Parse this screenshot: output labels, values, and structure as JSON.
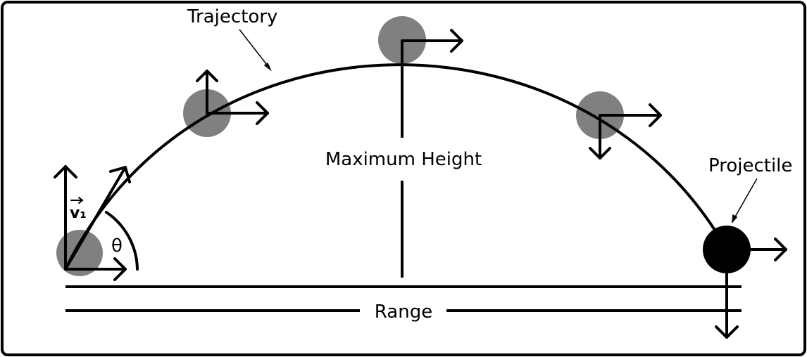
{
  "labels": {
    "trajectory": "Trajectory",
    "maximum_height": "Maximum Height",
    "projectile": "Projectile",
    "range": "Range",
    "velocity": "v₁",
    "angle": "θ"
  },
  "colors": {
    "stroke": "#000000",
    "ghost_ball": "#808080",
    "projectile_ball": "#000000",
    "background": "#ffffff"
  }
}
